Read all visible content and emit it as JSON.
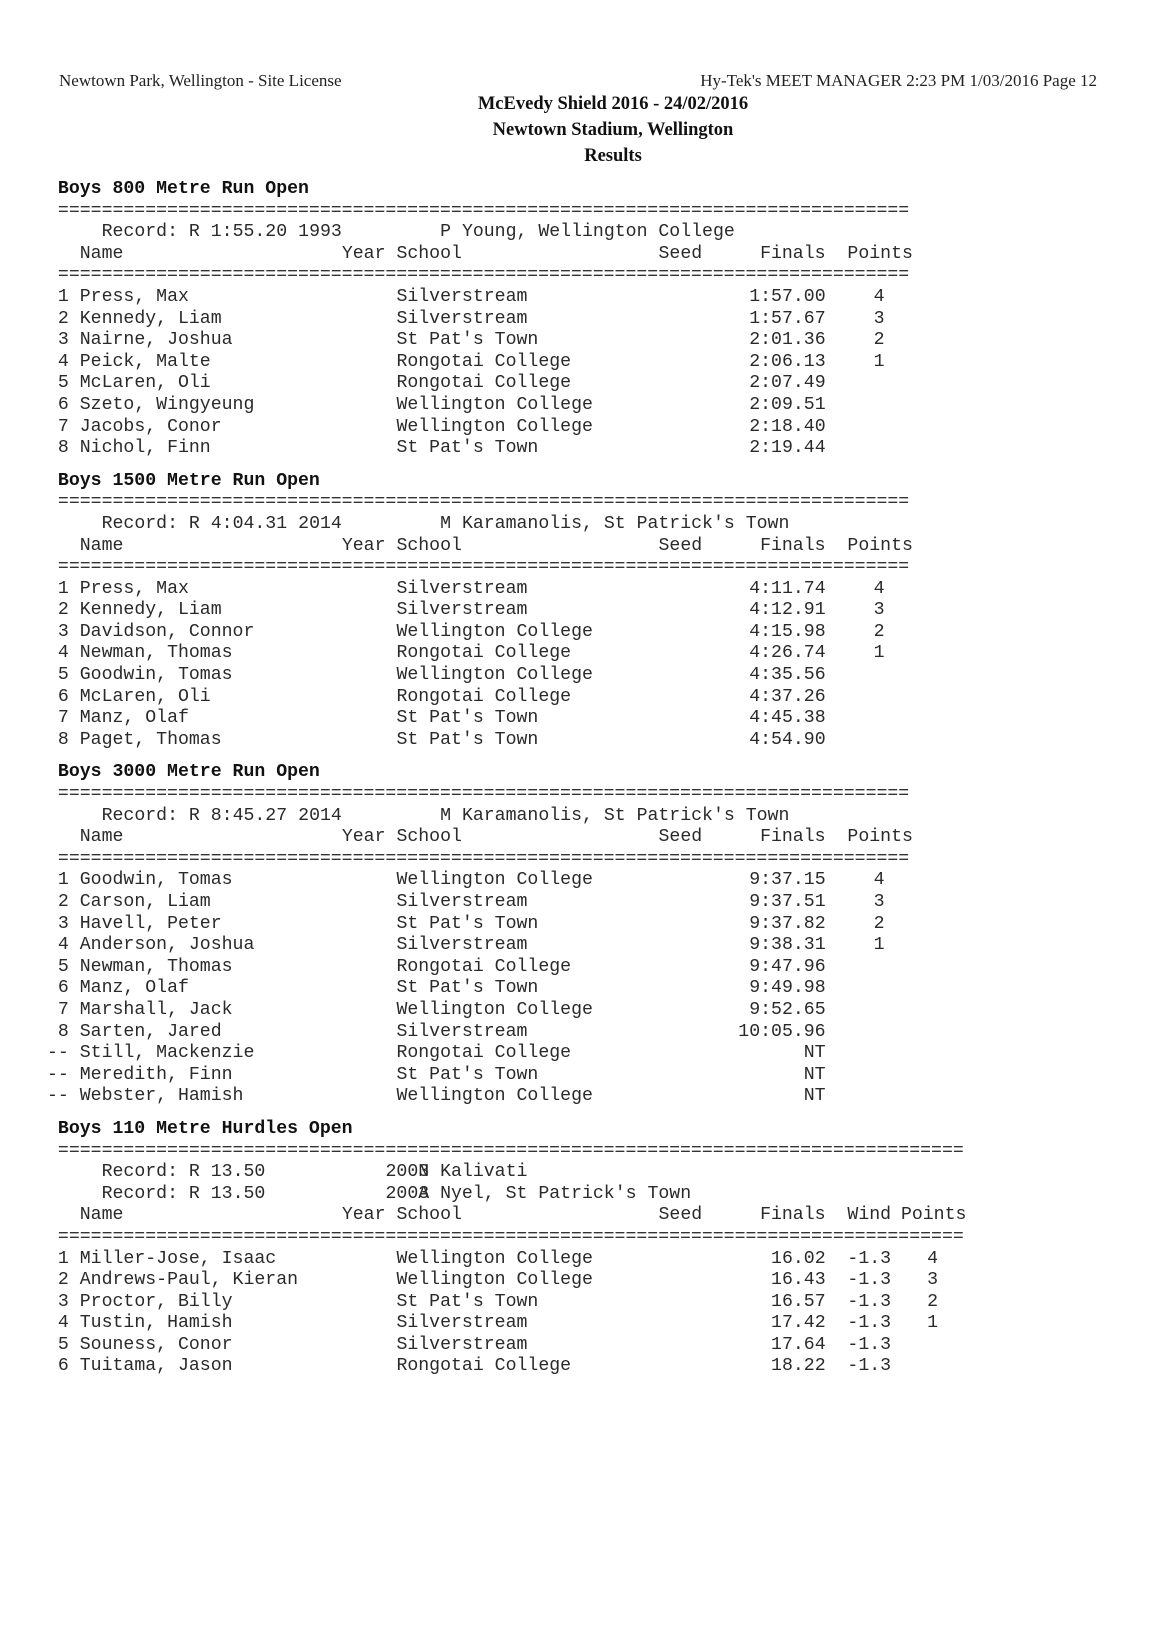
{
  "header": {
    "site": "Newtown Park, Wellington - Site License",
    "software": "Hy-Tek's MEET MANAGER  2:23 PM  1/03/2016  Page 12",
    "meet": "McEvedy Shield 2016 - 24/02/2016",
    "venue": "Newtown Stadium, Wellington",
    "subtitle": "Results"
  },
  "columns": {
    "name": "Name",
    "year": "Year",
    "school": "School",
    "seed": "Seed",
    "finals": "Finals",
    "wind": "Wind",
    "points": "Points"
  },
  "events": [
    {
      "title": "Boys 800 Metre Run Open",
      "has_wind": false,
      "records": [
        {
          "label": "Record: R 1:55.20",
          "year": "1993",
          "holder": "P Young, Wellington College"
        }
      ],
      "results": [
        {
          "place": "1",
          "name": "Press, Max",
          "school": "Silverstream",
          "finals": "1:57.00",
          "points": "4"
        },
        {
          "place": "2",
          "name": "Kennedy, Liam",
          "school": "Silverstream",
          "finals": "1:57.67",
          "points": "3"
        },
        {
          "place": "3",
          "name": "Nairne, Joshua",
          "school": "St Pat's Town",
          "finals": "2:01.36",
          "points": "2"
        },
        {
          "place": "4",
          "name": "Peick, Malte",
          "school": "Rongotai College",
          "finals": "2:06.13",
          "points": "1"
        },
        {
          "place": "5",
          "name": "McLaren, Oli",
          "school": "Rongotai College",
          "finals": "2:07.49",
          "points": ""
        },
        {
          "place": "6",
          "name": "Szeto, Wingyeung",
          "school": "Wellington College",
          "finals": "2:09.51",
          "points": ""
        },
        {
          "place": "7",
          "name": "Jacobs, Conor",
          "school": "Wellington College",
          "finals": "2:18.40",
          "points": ""
        },
        {
          "place": "8",
          "name": "Nichol, Finn",
          "school": "St Pat's Town",
          "finals": "2:19.44",
          "points": ""
        }
      ]
    },
    {
      "title": "Boys 1500 Metre Run Open",
      "has_wind": false,
      "records": [
        {
          "label": "Record: R 4:04.31",
          "year": "2014",
          "holder": "M Karamanolis, St Patrick's Town"
        }
      ],
      "results": [
        {
          "place": "1",
          "name": "Press, Max",
          "school": "Silverstream",
          "finals": "4:11.74",
          "points": "4"
        },
        {
          "place": "2",
          "name": "Kennedy, Liam",
          "school": "Silverstream",
          "finals": "4:12.91",
          "points": "3"
        },
        {
          "place": "3",
          "name": "Davidson, Connor",
          "school": "Wellington College",
          "finals": "4:15.98",
          "points": "2"
        },
        {
          "place": "4",
          "name": "Newman, Thomas",
          "school": "Rongotai College",
          "finals": "4:26.74",
          "points": "1"
        },
        {
          "place": "5",
          "name": "Goodwin, Tomas",
          "school": "Wellington College",
          "finals": "4:35.56",
          "points": ""
        },
        {
          "place": "6",
          "name": "McLaren, Oli",
          "school": "Rongotai College",
          "finals": "4:37.26",
          "points": ""
        },
        {
          "place": "7",
          "name": "Manz, Olaf",
          "school": "St Pat's Town",
          "finals": "4:45.38",
          "points": ""
        },
        {
          "place": "8",
          "name": "Paget, Thomas",
          "school": "St Pat's Town",
          "finals": "4:54.90",
          "points": ""
        }
      ]
    },
    {
      "title": "Boys 3000 Metre Run Open",
      "has_wind": false,
      "records": [
        {
          "label": "Record: R 8:45.27",
          "year": "2014",
          "holder": "M Karamanolis, St Patrick's Town"
        }
      ],
      "results": [
        {
          "place": "1",
          "name": "Goodwin, Tomas",
          "school": "Wellington College",
          "finals": "9:37.15",
          "points": "4"
        },
        {
          "place": "2",
          "name": "Carson, Liam",
          "school": "Silverstream",
          "finals": "9:37.51",
          "points": "3"
        },
        {
          "place": "3",
          "name": "Havell, Peter",
          "school": "St Pat's Town",
          "finals": "9:37.82",
          "points": "2"
        },
        {
          "place": "4",
          "name": "Anderson, Joshua",
          "school": "Silverstream",
          "finals": "9:38.31",
          "points": "1"
        },
        {
          "place": "5",
          "name": "Newman, Thomas",
          "school": "Rongotai College",
          "finals": "9:47.96",
          "points": ""
        },
        {
          "place": "6",
          "name": "Manz, Olaf",
          "school": "St Pat's Town",
          "finals": "9:49.98",
          "points": ""
        },
        {
          "place": "7",
          "name": "Marshall, Jack",
          "school": "Wellington College",
          "finals": "9:52.65",
          "points": ""
        },
        {
          "place": "8",
          "name": "Sarten, Jared",
          "school": "Silverstream",
          "finals": "10:05.96",
          "points": ""
        },
        {
          "place": "--",
          "name": "Still, Mackenzie",
          "school": "Rongotai College",
          "finals": "NT",
          "points": ""
        },
        {
          "place": "--",
          "name": "Meredith, Finn",
          "school": "St Pat's Town",
          "finals": "NT",
          "points": ""
        },
        {
          "place": "--",
          "name": "Webster, Hamish",
          "school": "Wellington College",
          "finals": "NT",
          "points": ""
        }
      ]
    },
    {
      "title": "Boys 110 Metre Hurdles Open",
      "has_wind": true,
      "records": [
        {
          "label": "Record: R 13.50",
          "year": "2003",
          "holder": "N Kalivati"
        },
        {
          "label": "Record: R 13.50",
          "year": "2003",
          "holder": "A Nyel, St Patrick's Town"
        }
      ],
      "results": [
        {
          "place": "1",
          "name": "Miller-Jose, Isaac",
          "school": "Wellington College",
          "finals": "16.02",
          "wind": "-1.3",
          "points": "4"
        },
        {
          "place": "2",
          "name": "Andrews-Paul, Kieran",
          "school": "Wellington College",
          "finals": "16.43",
          "wind": "-1.3",
          "points": "3"
        },
        {
          "place": "3",
          "name": "Proctor, Billy",
          "school": "St Pat's Town",
          "finals": "16.57",
          "wind": "-1.3",
          "points": "2"
        },
        {
          "place": "4",
          "name": "Tustin, Hamish",
          "school": "Silverstream",
          "finals": "17.42",
          "wind": "-1.3",
          "points": "1"
        },
        {
          "place": "5",
          "name": "Souness, Conor",
          "school": "Silverstream",
          "finals": "17.64",
          "wind": "-1.3",
          "points": ""
        },
        {
          "place": "6",
          "name": "Tuitama, Jason",
          "school": "Rongotai College",
          "finals": "18.22",
          "wind": "-1.3",
          "points": ""
        }
      ]
    }
  ]
}
